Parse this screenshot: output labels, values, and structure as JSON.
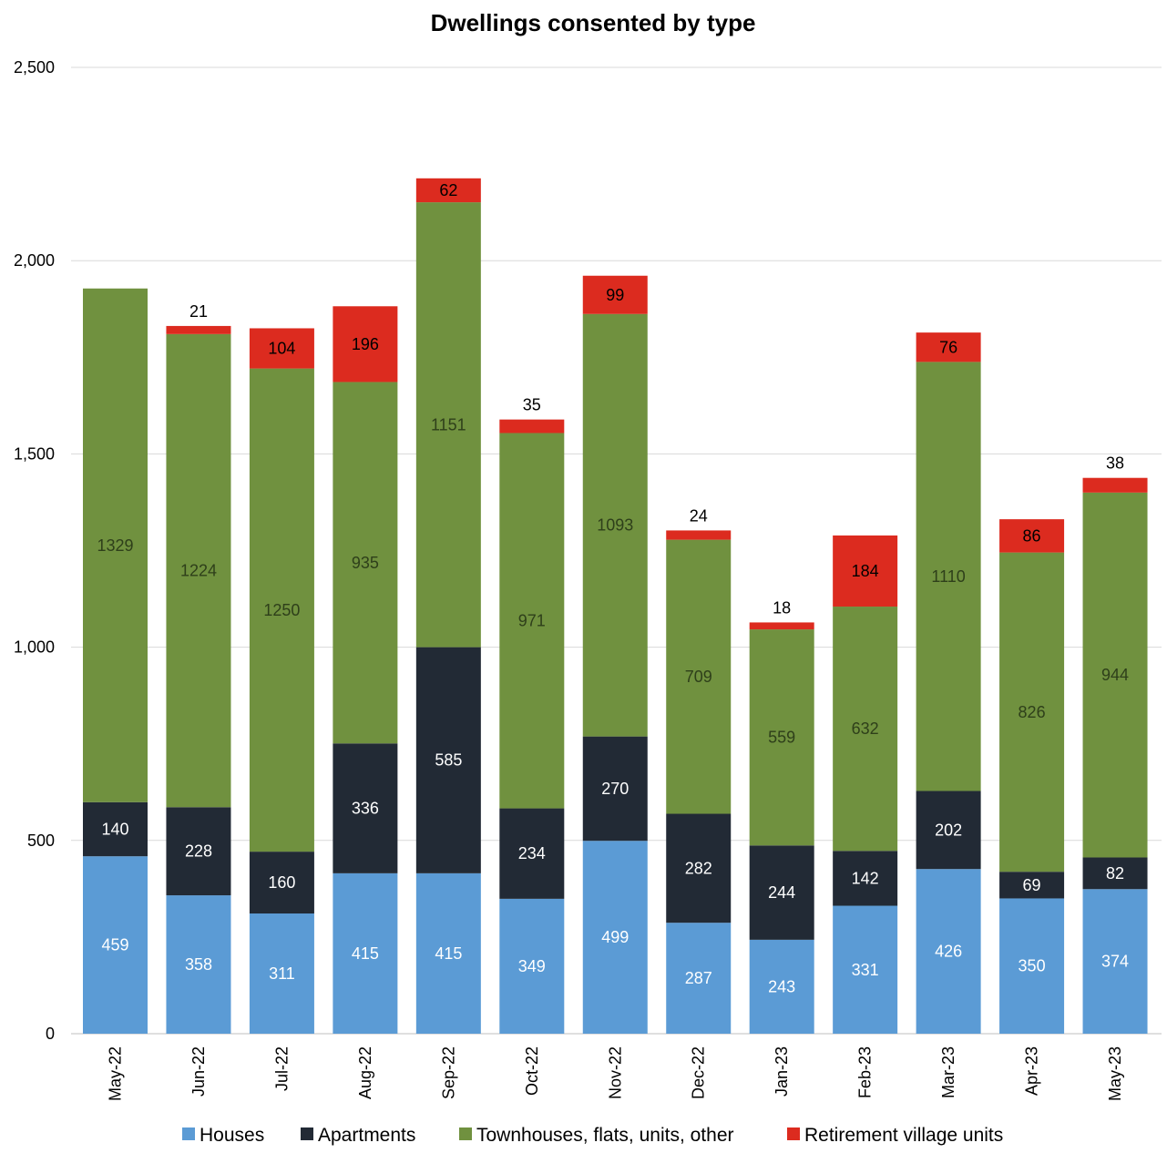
{
  "chart_data": {
    "type": "bar",
    "stacked": true,
    "title": "Dwellings consented by type",
    "xlabel": "",
    "ylabel": "",
    "ylim": [
      0,
      2500
    ],
    "yticks": [
      0,
      500,
      1000,
      1500,
      2000,
      2500
    ],
    "ytick_labels": [
      "0",
      "500",
      "1,000",
      "1,500",
      "2,000",
      "2,500"
    ],
    "grid": true,
    "legend_position": "bottom",
    "categories": [
      "May-22",
      "Jun-22",
      "Jul-22",
      "Aug-22",
      "Sep-22",
      "Oct-22",
      "Nov-22",
      "Dec-22",
      "Jan-23",
      "Feb-23",
      "Mar-23",
      "Apr-23",
      "May-23"
    ],
    "series": [
      {
        "name": "Houses",
        "color": "#5b9bd5",
        "label_color": "#ffffff",
        "values": [
          459,
          358,
          311,
          415,
          415,
          349,
          499,
          287,
          243,
          331,
          426,
          350,
          374
        ]
      },
      {
        "name": "Apartments",
        "color": "#222a35",
        "label_color": "#ffffff",
        "values": [
          140,
          228,
          160,
          336,
          585,
          234,
          270,
          282,
          244,
          142,
          202,
          69,
          82
        ]
      },
      {
        "name": "Townhouses, flats, units, other",
        "color": "#70913f",
        "label_color": "#2e3f1a",
        "values": [
          1329,
          1224,
          1250,
          935,
          1151,
          971,
          1093,
          709,
          559,
          632,
          1110,
          826,
          944
        ]
      },
      {
        "name": "Retirement village units",
        "color": "#dc2b1f",
        "label_color": "#000000",
        "values": [
          null,
          21,
          104,
          196,
          62,
          35,
          99,
          24,
          18,
          184,
          76,
          86,
          38
        ]
      }
    ]
  }
}
